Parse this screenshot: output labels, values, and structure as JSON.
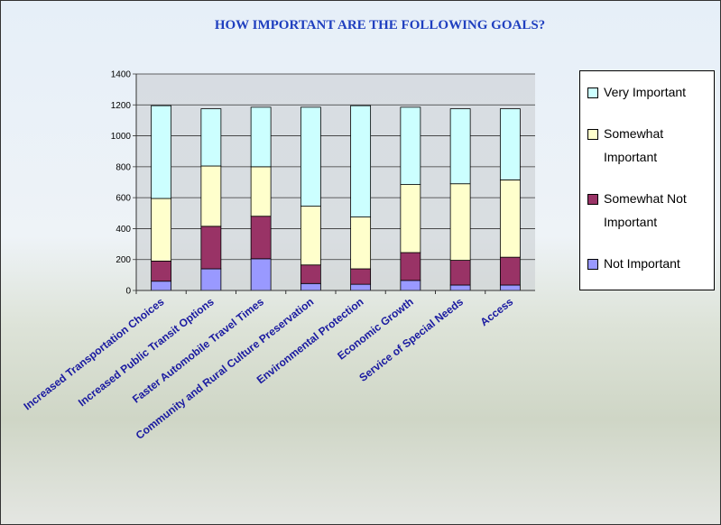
{
  "chart_data": {
    "type": "stacked-bar",
    "title": "HOW IMPORTANT ARE THE FOLLOWING GOALS?",
    "categories": [
      "Increased Transportation Choices",
      "Increased Public Transit Options",
      "Faster Automobile Travel Times",
      "Community and Rural Culture Preservation",
      "Environmental Protection",
      "Economic Growth",
      "Service of Special Needs",
      "Access"
    ],
    "series": [
      {
        "name": "Not Important",
        "color": "#9999ff",
        "values": [
          60,
          140,
          205,
          45,
          40,
          65,
          35,
          35
        ]
      },
      {
        "name": "Somewhat Not Important",
        "color": "#993366",
        "values": [
          130,
          275,
          275,
          120,
          100,
          180,
          160,
          180
        ]
      },
      {
        "name": "Somewhat Important",
        "color": "#ffffcc",
        "values": [
          405,
          390,
          320,
          380,
          335,
          440,
          495,
          500
        ]
      },
      {
        "name": "Very Important",
        "color": "#ccffff",
        "values": [
          600,
          370,
          385,
          640,
          720,
          500,
          485,
          460
        ]
      }
    ],
    "ylim": [
      0,
      1400
    ],
    "yticks": [
      0,
      200,
      400,
      600,
      800,
      1000,
      1200,
      1400
    ],
    "grid": true,
    "legend": "right"
  }
}
